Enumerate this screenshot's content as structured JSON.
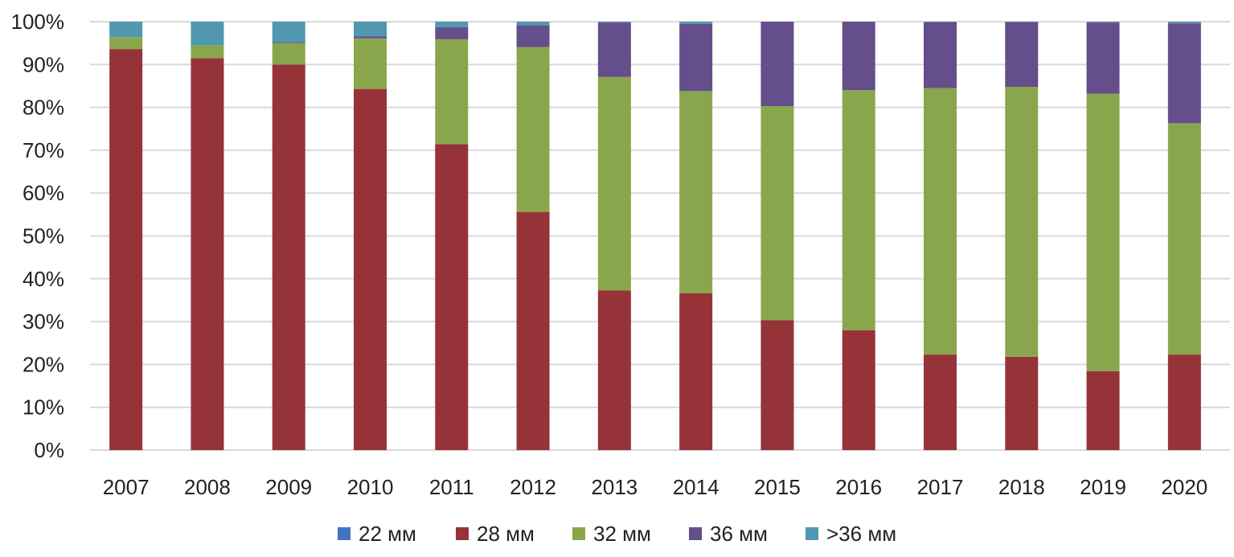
{
  "chart_data": {
    "type": "bar",
    "stacked": true,
    "title": "",
    "xlabel": "",
    "ylabel": "",
    "ylim": [
      0,
      100
    ],
    "yticks": [
      "0%",
      "10%",
      "20%",
      "30%",
      "40%",
      "50%",
      "60%",
      "70%",
      "80%",
      "90%",
      "100%"
    ],
    "grid": true,
    "legend_position": "bottom",
    "categories": [
      "2007",
      "2008",
      "2009",
      "2010",
      "2011",
      "2012",
      "2013",
      "2014",
      "2015",
      "2016",
      "2017",
      "2018",
      "2019",
      "2020"
    ],
    "series": [
      {
        "name": "22 мм",
        "color": "#4472c4",
        "values": [
          0,
          0,
          0,
          0,
          0,
          0,
          0,
          0,
          0,
          0,
          0,
          0,
          0,
          0
        ]
      },
      {
        "name": "28 мм",
        "color": "#953339",
        "values": [
          93.6,
          91.5,
          90.0,
          84.3,
          71.4,
          55.6,
          37.3,
          36.6,
          30.3,
          28.0,
          22.3,
          21.8,
          18.4,
          22.3
        ]
      },
      {
        "name": "32 мм",
        "color": "#8aa64c",
        "values": [
          2.8,
          3.0,
          5.0,
          11.8,
          24.5,
          38.5,
          49.8,
          47.2,
          50.0,
          56.0,
          62.2,
          63.0,
          64.8,
          54.0
        ]
      },
      {
        "name": "36 мм",
        "color": "#644e8c",
        "values": [
          0,
          0,
          0.2,
          0.5,
          2.8,
          5.1,
          12.7,
          15.7,
          19.7,
          16.0,
          15.4,
          15.1,
          16.6,
          23.3
        ]
      },
      {
        "name": ">36 мм",
        "color": "#4f98b0",
        "values": [
          3.6,
          5.5,
          4.8,
          3.4,
          1.3,
          0.8,
          0.2,
          0.5,
          0,
          0,
          0.1,
          0.1,
          0.2,
          0.4
        ]
      }
    ]
  }
}
